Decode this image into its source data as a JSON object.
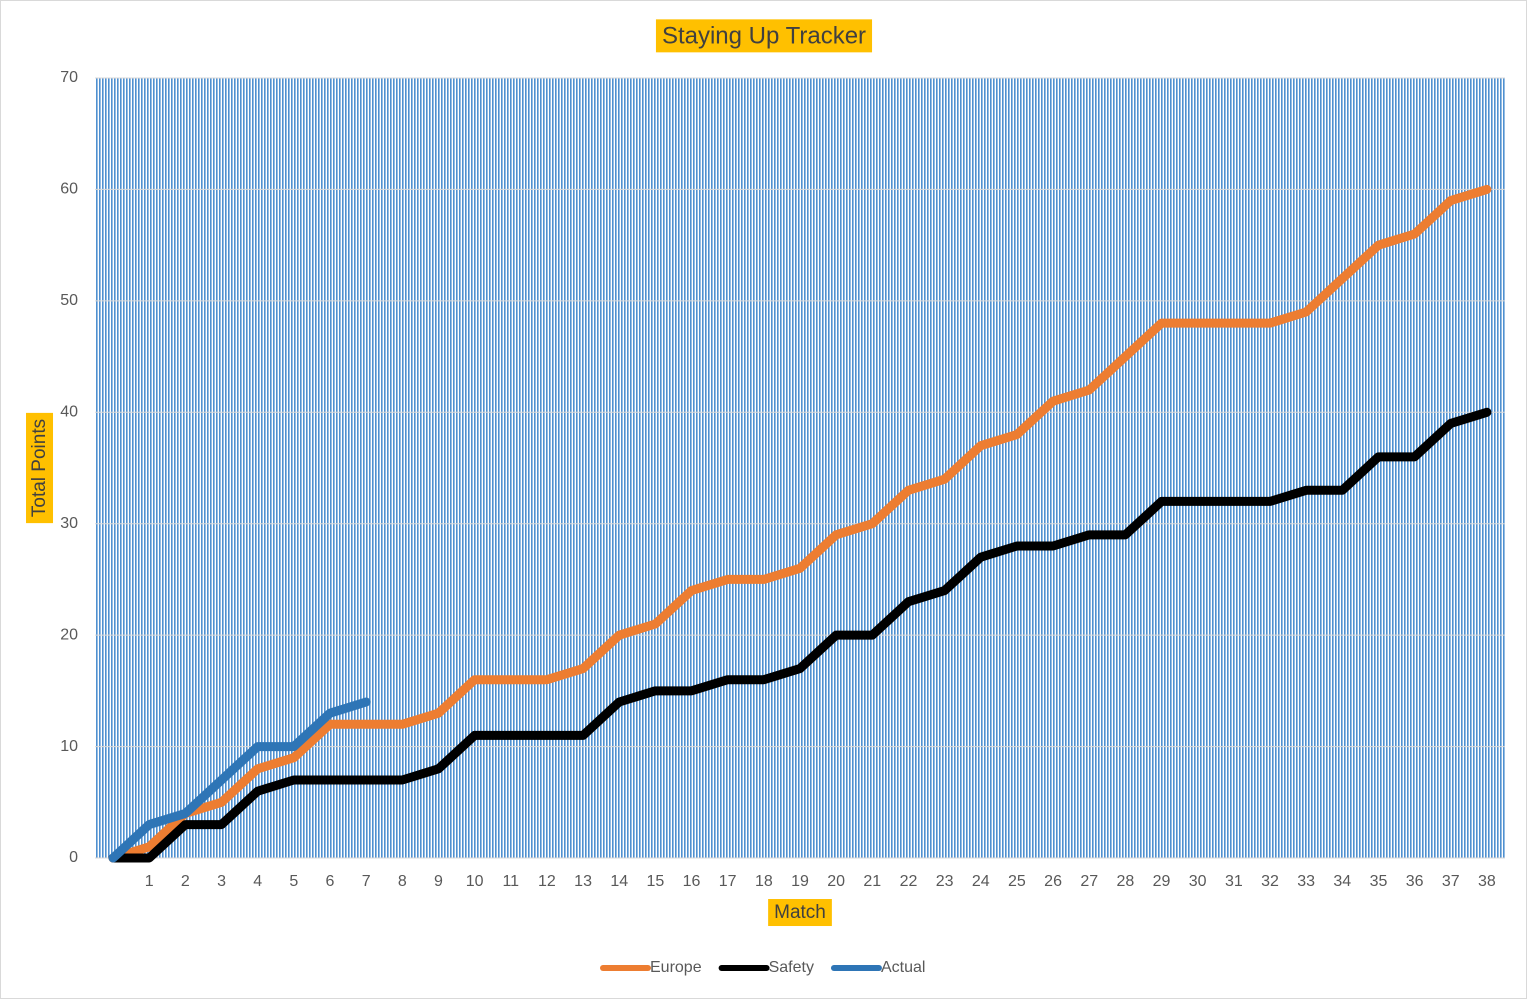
{
  "chart_data": {
    "type": "line",
    "title": "Staying Up Tracker",
    "x_label": "Match",
    "y_label": "Total Points",
    "categories": [
      null,
      "1",
      "2",
      "3",
      "4",
      "5",
      "6",
      "7",
      "8",
      "9",
      "10",
      "11",
      "12",
      "13",
      "14",
      "15",
      "16",
      "17",
      "18",
      "19",
      "20",
      "21",
      "22",
      "23",
      "24",
      "25",
      "26",
      "27",
      "28",
      "29",
      "30",
      "31",
      "32",
      "33",
      "34",
      "35",
      "36",
      "37",
      "38"
    ],
    "series": [
      {
        "name": "Europe",
        "color": "#ed7d31",
        "values": [
          0,
          1,
          4,
          5,
          8,
          9,
          12,
          12,
          12,
          13,
          16,
          16,
          16,
          17,
          20,
          21,
          24,
          25,
          25,
          26,
          29,
          30,
          33,
          34,
          37,
          38,
          41,
          42,
          45,
          48,
          48,
          48,
          48,
          49,
          52,
          55,
          56,
          59,
          60
        ]
      },
      {
        "name": "Safety",
        "color": "#000000",
        "values": [
          0,
          0,
          3,
          3,
          6,
          7,
          7,
          7,
          7,
          8,
          11,
          11,
          11,
          11,
          14,
          15,
          15,
          16,
          16,
          17,
          20,
          20,
          23,
          24,
          27,
          28,
          28,
          29,
          29,
          32,
          32,
          32,
          32,
          33,
          33,
          36,
          36,
          39,
          40
        ]
      },
      {
        "name": "Actual",
        "color": "#2e75b6",
        "values": [
          0,
          3,
          4,
          7,
          10,
          10,
          13,
          14,
          null,
          null,
          null,
          null,
          null,
          null,
          null,
          null,
          null,
          null,
          null,
          null,
          null,
          null,
          null,
          null,
          null,
          null,
          null,
          null,
          null,
          null,
          null,
          null,
          null,
          null,
          null,
          null,
          null,
          null,
          null
        ]
      }
    ],
    "ylim": [
      0,
      70
    ],
    "yticks": [
      0,
      10,
      20,
      30,
      40,
      50,
      60,
      70
    ],
    "grid": true,
    "legend": "bottom"
  }
}
